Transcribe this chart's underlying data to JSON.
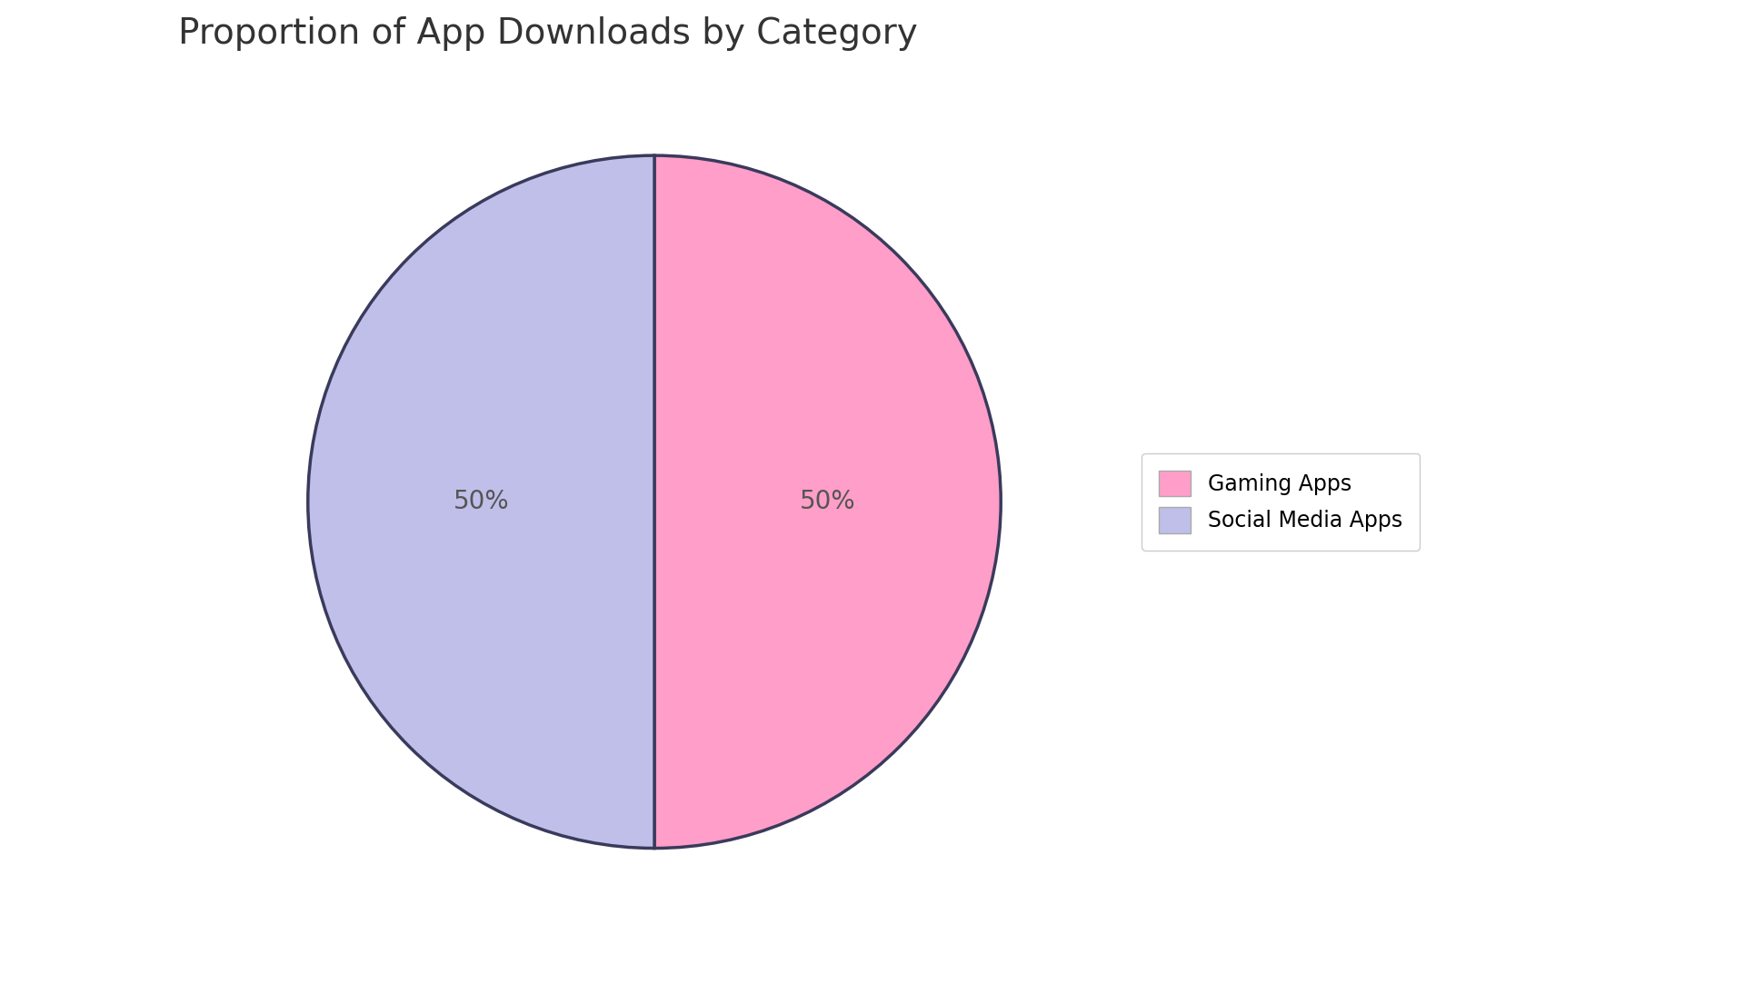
{
  "title": "Proportion of App Downloads by Category",
  "labels": [
    "Gaming Apps",
    "Social Media Apps"
  ],
  "values": [
    50,
    50
  ],
  "colors": [
    "#FF9EC8",
    "#C0BFEA"
  ],
  "edge_color": "#3A3A5C",
  "edge_width": 2.5,
  "pct_labels": [
    "50%",
    "50%"
  ],
  "pct_fontsize": 20,
  "pct_color": "#555555",
  "title_fontsize": 28,
  "title_color": "#333333",
  "legend_fontsize": 17,
  "background_color": "#FFFFFF",
  "startangle": 90
}
